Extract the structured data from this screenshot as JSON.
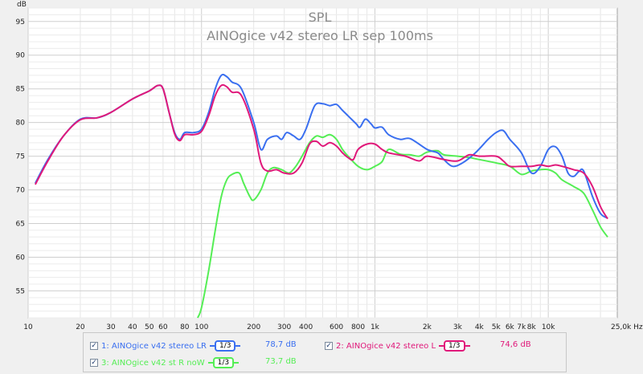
{
  "chart_data": {
    "type": "line",
    "title": "SPL",
    "subtitle": "AINOgice v42 stereo LR sep 100ms",
    "ylabel": "dB",
    "xlabel": "",
    "x_scale": "log",
    "xlim": [
      10,
      25000
    ],
    "ylim": [
      51,
      97
    ],
    "grid": true,
    "y_ticks": [
      55,
      60,
      65,
      70,
      75,
      80,
      85,
      90,
      95
    ],
    "y_tick_labels": [
      "55",
      "60",
      "65",
      "70",
      "75",
      "80",
      "85",
      "90",
      "95"
    ],
    "x_ticks": [
      10,
      20,
      30,
      40,
      50,
      60,
      80,
      100,
      200,
      300,
      400,
      600,
      800,
      1000,
      2000,
      3000,
      4000,
      5000,
      6000,
      7000,
      8000,
      10000,
      25000
    ],
    "x_tick_labels": [
      "10",
      "20",
      "30",
      "40",
      "50",
      "60",
      "80",
      "100",
      "200",
      "300",
      "400",
      "600",
      "800",
      "1k",
      "2k",
      "3k",
      "4k",
      "5k",
      "6k",
      "7k",
      "8k",
      "10k",
      "25,0k Hz"
    ],
    "series": [
      {
        "name": "AINOgice v42 stereo LR",
        "index": "1:",
        "color": "#3a6ff0",
        "smoothing": "1/3",
        "value": "78,7 dB",
        "points": [
          [
            11,
            71
          ],
          [
            13,
            74.5
          ],
          [
            16,
            78
          ],
          [
            20,
            80.5
          ],
          [
            25,
            80.7
          ],
          [
            30,
            81.5
          ],
          [
            40,
            83.5
          ],
          [
            50,
            84.7
          ],
          [
            56,
            85.5
          ],
          [
            60,
            85
          ],
          [
            65,
            81.5
          ],
          [
            70,
            78.5
          ],
          [
            75,
            77.5
          ],
          [
            80,
            78.5
          ],
          [
            90,
            78.5
          ],
          [
            100,
            79
          ],
          [
            110,
            81.5
          ],
          [
            120,
            85
          ],
          [
            130,
            87
          ],
          [
            140,
            86.8
          ],
          [
            150,
            86
          ],
          [
            170,
            85
          ],
          [
            200,
            80
          ],
          [
            220,
            76
          ],
          [
            240,
            77.5
          ],
          [
            270,
            78
          ],
          [
            290,
            77.5
          ],
          [
            310,
            78.5
          ],
          [
            340,
            78
          ],
          [
            370,
            77.5
          ],
          [
            400,
            79
          ],
          [
            450,
            82.5
          ],
          [
            500,
            82.8
          ],
          [
            550,
            82.5
          ],
          [
            600,
            82.7
          ],
          [
            650,
            81.8
          ],
          [
            700,
            81
          ],
          [
            780,
            79.8
          ],
          [
            820,
            79.3
          ],
          [
            880,
            80.5
          ],
          [
            950,
            79.8
          ],
          [
            1000,
            79.2
          ],
          [
            1100,
            79.3
          ],
          [
            1200,
            78.2
          ],
          [
            1400,
            77.5
          ],
          [
            1600,
            77.6
          ],
          [
            2000,
            76
          ],
          [
            2300,
            75.5
          ],
          [
            2500,
            74.5
          ],
          [
            2800,
            73.5
          ],
          [
            3200,
            74
          ],
          [
            3800,
            75.5
          ],
          [
            4500,
            77.5
          ],
          [
            5000,
            78.5
          ],
          [
            5500,
            78.8
          ],
          [
            6000,
            77.5
          ],
          [
            7000,
            75.5
          ],
          [
            8000,
            72.5
          ],
          [
            9000,
            73.5
          ],
          [
            10000,
            76
          ],
          [
            11000,
            76.4
          ],
          [
            12000,
            75
          ],
          [
            13000,
            72.5
          ],
          [
            14000,
            72
          ],
          [
            15000,
            72.7
          ],
          [
            16000,
            72.8
          ],
          [
            18000,
            69
          ],
          [
            20000,
            66.5
          ],
          [
            22000,
            65.8
          ]
        ]
      },
      {
        "name": "AINOgice v42 stereo L",
        "index": "2:",
        "color": "#e0197a",
        "smoothing": "1/3",
        "value": "74,6 dB",
        "points": [
          [
            11,
            70.8
          ],
          [
            13,
            74.3
          ],
          [
            16,
            78
          ],
          [
            20,
            80.4
          ],
          [
            25,
            80.7
          ],
          [
            30,
            81.5
          ],
          [
            40,
            83.5
          ],
          [
            50,
            84.7
          ],
          [
            56,
            85.5
          ],
          [
            60,
            85
          ],
          [
            65,
            81.5
          ],
          [
            70,
            78.3
          ],
          [
            75,
            77.3
          ],
          [
            80,
            78.2
          ],
          [
            90,
            78.2
          ],
          [
            100,
            78.7
          ],
          [
            110,
            81
          ],
          [
            120,
            84
          ],
          [
            130,
            85.5
          ],
          [
            140,
            85.3
          ],
          [
            150,
            84.5
          ],
          [
            170,
            84
          ],
          [
            200,
            79
          ],
          [
            220,
            74
          ],
          [
            240,
            72.8
          ],
          [
            270,
            73
          ],
          [
            300,
            72.5
          ],
          [
            340,
            72.5
          ],
          [
            380,
            74
          ],
          [
            420,
            76.8
          ],
          [
            460,
            77.2
          ],
          [
            500,
            76.5
          ],
          [
            550,
            77
          ],
          [
            600,
            76.5
          ],
          [
            650,
            75.5
          ],
          [
            700,
            74.8
          ],
          [
            750,
            74.5
          ],
          [
            800,
            76
          ],
          [
            900,
            76.8
          ],
          [
            1000,
            76.8
          ],
          [
            1100,
            76
          ],
          [
            1200,
            75.5
          ],
          [
            1500,
            75
          ],
          [
            1800,
            74.3
          ],
          [
            2000,
            75
          ],
          [
            2500,
            74.5
          ],
          [
            3000,
            74.3
          ],
          [
            3500,
            75.2
          ],
          [
            4000,
            75
          ],
          [
            5000,
            75
          ],
          [
            5500,
            74.3
          ],
          [
            6000,
            73.5
          ],
          [
            7000,
            73.5
          ],
          [
            8000,
            73.5
          ],
          [
            9000,
            73.7
          ],
          [
            10000,
            73.5
          ],
          [
            11000,
            73.7
          ],
          [
            12000,
            73.5
          ],
          [
            14000,
            73
          ],
          [
            16000,
            72.5
          ],
          [
            18000,
            70.5
          ],
          [
            20000,
            67.5
          ],
          [
            22000,
            65.7
          ]
        ]
      },
      {
        "name": "AINOgice v42 st R noW",
        "index": "3:",
        "color": "#55ee55",
        "smoothing": "1/3",
        "value": "73,7 dB",
        "points": [
          [
            95,
            51
          ],
          [
            100,
            52.5
          ],
          [
            110,
            58
          ],
          [
            120,
            64
          ],
          [
            130,
            69
          ],
          [
            140,
            71.5
          ],
          [
            150,
            72.3
          ],
          [
            165,
            72.5
          ],
          [
            175,
            71
          ],
          [
            190,
            69
          ],
          [
            200,
            68.5
          ],
          [
            220,
            70
          ],
          [
            240,
            72.5
          ],
          [
            260,
            73.3
          ],
          [
            290,
            73
          ],
          [
            320,
            72.5
          ],
          [
            350,
            73.5
          ],
          [
            380,
            75
          ],
          [
            420,
            77
          ],
          [
            460,
            78
          ],
          [
            500,
            77.8
          ],
          [
            550,
            78.2
          ],
          [
            600,
            77.5
          ],
          [
            650,
            76
          ],
          [
            700,
            75
          ],
          [
            800,
            73.5
          ],
          [
            900,
            73
          ],
          [
            1000,
            73.5
          ],
          [
            1100,
            74.2
          ],
          [
            1200,
            76
          ],
          [
            1400,
            75.3
          ],
          [
            1600,
            75.2
          ],
          [
            1800,
            75
          ],
          [
            2000,
            75.6
          ],
          [
            2300,
            75.8
          ],
          [
            2500,
            75.2
          ],
          [
            3000,
            75
          ],
          [
            3500,
            74.8
          ],
          [
            4000,
            74.5
          ],
          [
            5000,
            74
          ],
          [
            6000,
            73.5
          ],
          [
            7000,
            72.3
          ],
          [
            8000,
            72.8
          ],
          [
            9000,
            73
          ],
          [
            10000,
            73
          ],
          [
            11000,
            72.5
          ],
          [
            12000,
            71.5
          ],
          [
            14000,
            70.5
          ],
          [
            16000,
            69.5
          ],
          [
            18000,
            67
          ],
          [
            20000,
            64.5
          ],
          [
            22000,
            63
          ]
        ]
      }
    ]
  }
}
